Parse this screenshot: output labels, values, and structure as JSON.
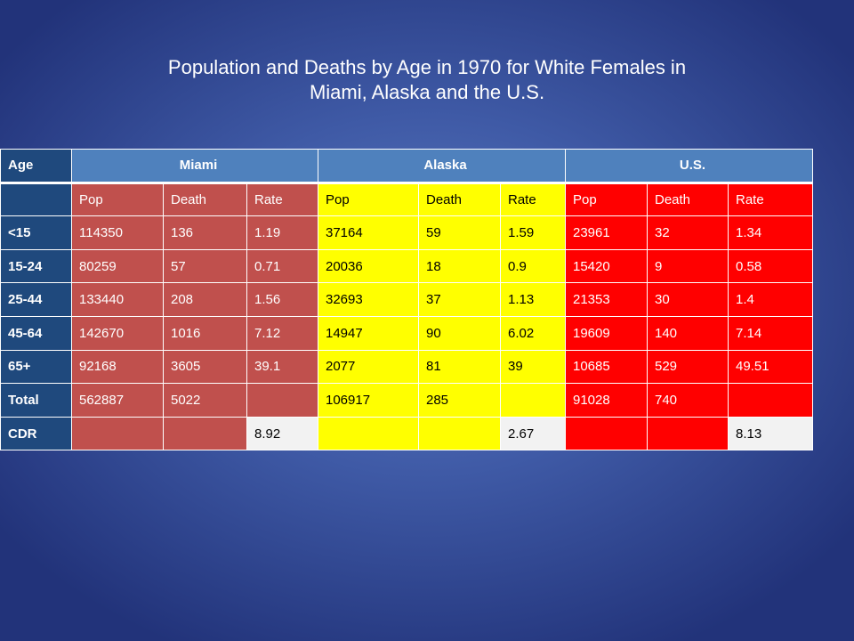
{
  "title": {
    "line1": "Population and Deaths by Age in 1970 for White Females in",
    "line2": "Miami, Alaska and the U.S."
  },
  "table": {
    "header": {
      "age": "Age",
      "groups": [
        "Miami",
        "Alaska",
        "U.S."
      ]
    },
    "subheader": [
      "Pop",
      "Death",
      "Rate",
      "Pop",
      "Death",
      "Rate",
      "Pop",
      "Death",
      "Rate"
    ],
    "rows": [
      {
        "age": "<15",
        "values": [
          "114350",
          "136",
          "1.19",
          "37164",
          "59",
          "1.59",
          "23961",
          "32",
          "1.34"
        ]
      },
      {
        "age": "15-24",
        "values": [
          "80259",
          "57",
          "0.71",
          "20036",
          "18",
          "0.9",
          "15420",
          "9",
          "0.58"
        ]
      },
      {
        "age": "25-44",
        "values": [
          "133440",
          "208",
          "1.56",
          "32693",
          "37",
          "1.13",
          "21353",
          "30",
          "1.4"
        ]
      },
      {
        "age": "45-64",
        "values": [
          "142670",
          "1016",
          "7.12",
          "14947",
          "90",
          "6.02",
          "19609",
          "140",
          "7.14"
        ]
      },
      {
        "age": "65+",
        "values": [
          "92168",
          "3605",
          "39.1",
          "2077",
          "81",
          "39",
          "10685",
          "529",
          "49.51"
        ]
      },
      {
        "age": "Total",
        "values": [
          "562887",
          "5022",
          "",
          "106917",
          "285",
          "",
          "91028",
          "740",
          ""
        ]
      },
      {
        "age": "CDR",
        "values": [
          "",
          "",
          "8.92",
          "",
          "",
          "2.67",
          "",
          "",
          "8.13"
        ]
      }
    ]
  },
  "colors": {
    "background": "#3f5aa6",
    "age_column": "#1f497d",
    "header_blue": "#4f81bd",
    "miami": "#c0504d",
    "alaska": "#ffff00",
    "us": "#ff0000",
    "cdr_value": "#f2f2f2"
  }
}
